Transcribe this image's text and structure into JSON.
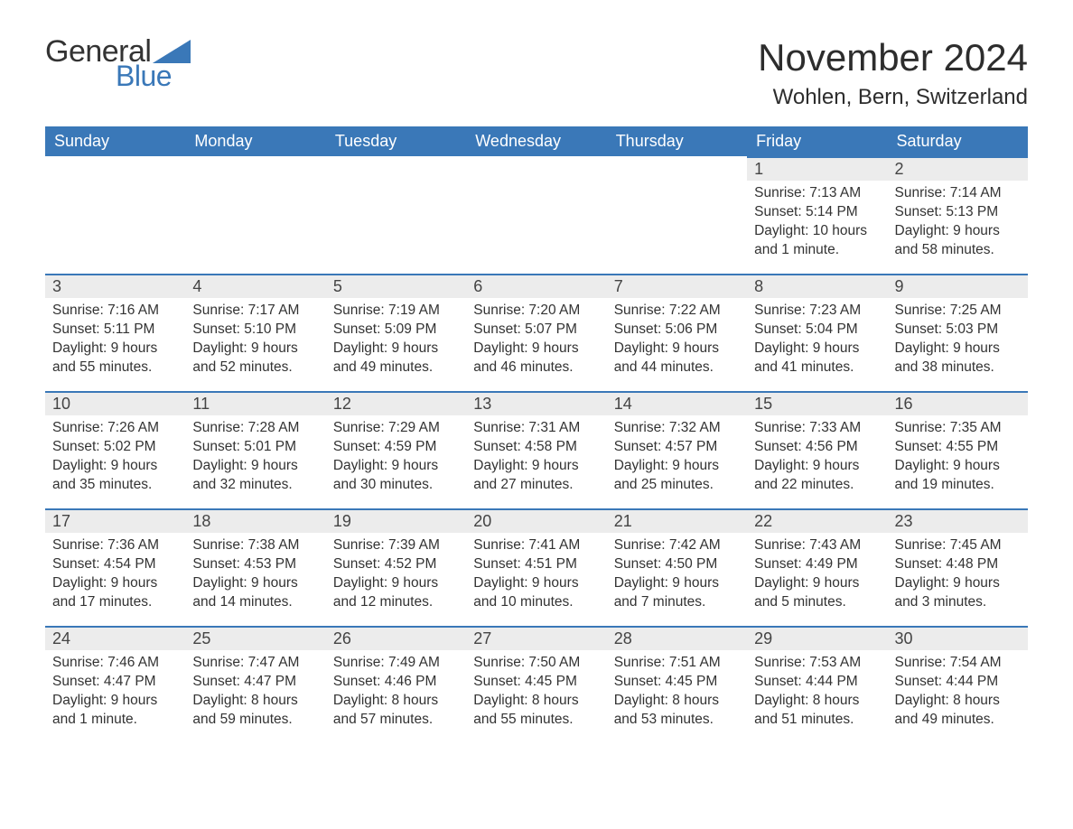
{
  "logo": {
    "general": "General",
    "blue": "Blue",
    "accent_color": "#3a78b8"
  },
  "header": {
    "title": "November 2024",
    "location": "Wohlen, Bern, Switzerland"
  },
  "styling": {
    "header_bg": "#3a78b8",
    "header_text": "#ffffff",
    "daynum_bg": "#ececec",
    "daynum_border": "#3a78b8",
    "body_text": "#333333",
    "page_bg": "#ffffff",
    "month_title_fontsize": 42,
    "location_fontsize": 24,
    "th_fontsize": 18,
    "detail_fontsize": 15.5
  },
  "daysOfWeek": [
    "Sunday",
    "Monday",
    "Tuesday",
    "Wednesday",
    "Thursday",
    "Friday",
    "Saturday"
  ],
  "weeks": [
    [
      null,
      null,
      null,
      null,
      null,
      {
        "n": "1",
        "sunrise": "Sunrise: 7:13 AM",
        "sunset": "Sunset: 5:14 PM",
        "day1": "Daylight: 10 hours",
        "day2": "and 1 minute."
      },
      {
        "n": "2",
        "sunrise": "Sunrise: 7:14 AM",
        "sunset": "Sunset: 5:13 PM",
        "day1": "Daylight: 9 hours",
        "day2": "and 58 minutes."
      }
    ],
    [
      {
        "n": "3",
        "sunrise": "Sunrise: 7:16 AM",
        "sunset": "Sunset: 5:11 PM",
        "day1": "Daylight: 9 hours",
        "day2": "and 55 minutes."
      },
      {
        "n": "4",
        "sunrise": "Sunrise: 7:17 AM",
        "sunset": "Sunset: 5:10 PM",
        "day1": "Daylight: 9 hours",
        "day2": "and 52 minutes."
      },
      {
        "n": "5",
        "sunrise": "Sunrise: 7:19 AM",
        "sunset": "Sunset: 5:09 PM",
        "day1": "Daylight: 9 hours",
        "day2": "and 49 minutes."
      },
      {
        "n": "6",
        "sunrise": "Sunrise: 7:20 AM",
        "sunset": "Sunset: 5:07 PM",
        "day1": "Daylight: 9 hours",
        "day2": "and 46 minutes."
      },
      {
        "n": "7",
        "sunrise": "Sunrise: 7:22 AM",
        "sunset": "Sunset: 5:06 PM",
        "day1": "Daylight: 9 hours",
        "day2": "and 44 minutes."
      },
      {
        "n": "8",
        "sunrise": "Sunrise: 7:23 AM",
        "sunset": "Sunset: 5:04 PM",
        "day1": "Daylight: 9 hours",
        "day2": "and 41 minutes."
      },
      {
        "n": "9",
        "sunrise": "Sunrise: 7:25 AM",
        "sunset": "Sunset: 5:03 PM",
        "day1": "Daylight: 9 hours",
        "day2": "and 38 minutes."
      }
    ],
    [
      {
        "n": "10",
        "sunrise": "Sunrise: 7:26 AM",
        "sunset": "Sunset: 5:02 PM",
        "day1": "Daylight: 9 hours",
        "day2": "and 35 minutes."
      },
      {
        "n": "11",
        "sunrise": "Sunrise: 7:28 AM",
        "sunset": "Sunset: 5:01 PM",
        "day1": "Daylight: 9 hours",
        "day2": "and 32 minutes."
      },
      {
        "n": "12",
        "sunrise": "Sunrise: 7:29 AM",
        "sunset": "Sunset: 4:59 PM",
        "day1": "Daylight: 9 hours",
        "day2": "and 30 minutes."
      },
      {
        "n": "13",
        "sunrise": "Sunrise: 7:31 AM",
        "sunset": "Sunset: 4:58 PM",
        "day1": "Daylight: 9 hours",
        "day2": "and 27 minutes."
      },
      {
        "n": "14",
        "sunrise": "Sunrise: 7:32 AM",
        "sunset": "Sunset: 4:57 PM",
        "day1": "Daylight: 9 hours",
        "day2": "and 25 minutes."
      },
      {
        "n": "15",
        "sunrise": "Sunrise: 7:33 AM",
        "sunset": "Sunset: 4:56 PM",
        "day1": "Daylight: 9 hours",
        "day2": "and 22 minutes."
      },
      {
        "n": "16",
        "sunrise": "Sunrise: 7:35 AM",
        "sunset": "Sunset: 4:55 PM",
        "day1": "Daylight: 9 hours",
        "day2": "and 19 minutes."
      }
    ],
    [
      {
        "n": "17",
        "sunrise": "Sunrise: 7:36 AM",
        "sunset": "Sunset: 4:54 PM",
        "day1": "Daylight: 9 hours",
        "day2": "and 17 minutes."
      },
      {
        "n": "18",
        "sunrise": "Sunrise: 7:38 AM",
        "sunset": "Sunset: 4:53 PM",
        "day1": "Daylight: 9 hours",
        "day2": "and 14 minutes."
      },
      {
        "n": "19",
        "sunrise": "Sunrise: 7:39 AM",
        "sunset": "Sunset: 4:52 PM",
        "day1": "Daylight: 9 hours",
        "day2": "and 12 minutes."
      },
      {
        "n": "20",
        "sunrise": "Sunrise: 7:41 AM",
        "sunset": "Sunset: 4:51 PM",
        "day1": "Daylight: 9 hours",
        "day2": "and 10 minutes."
      },
      {
        "n": "21",
        "sunrise": "Sunrise: 7:42 AM",
        "sunset": "Sunset: 4:50 PM",
        "day1": "Daylight: 9 hours",
        "day2": "and 7 minutes."
      },
      {
        "n": "22",
        "sunrise": "Sunrise: 7:43 AM",
        "sunset": "Sunset: 4:49 PM",
        "day1": "Daylight: 9 hours",
        "day2": "and 5 minutes."
      },
      {
        "n": "23",
        "sunrise": "Sunrise: 7:45 AM",
        "sunset": "Sunset: 4:48 PM",
        "day1": "Daylight: 9 hours",
        "day2": "and 3 minutes."
      }
    ],
    [
      {
        "n": "24",
        "sunrise": "Sunrise: 7:46 AM",
        "sunset": "Sunset: 4:47 PM",
        "day1": "Daylight: 9 hours",
        "day2": "and 1 minute."
      },
      {
        "n": "25",
        "sunrise": "Sunrise: 7:47 AM",
        "sunset": "Sunset: 4:47 PM",
        "day1": "Daylight: 8 hours",
        "day2": "and 59 minutes."
      },
      {
        "n": "26",
        "sunrise": "Sunrise: 7:49 AM",
        "sunset": "Sunset: 4:46 PM",
        "day1": "Daylight: 8 hours",
        "day2": "and 57 minutes."
      },
      {
        "n": "27",
        "sunrise": "Sunrise: 7:50 AM",
        "sunset": "Sunset: 4:45 PM",
        "day1": "Daylight: 8 hours",
        "day2": "and 55 minutes."
      },
      {
        "n": "28",
        "sunrise": "Sunrise: 7:51 AM",
        "sunset": "Sunset: 4:45 PM",
        "day1": "Daylight: 8 hours",
        "day2": "and 53 minutes."
      },
      {
        "n": "29",
        "sunrise": "Sunrise: 7:53 AM",
        "sunset": "Sunset: 4:44 PM",
        "day1": "Daylight: 8 hours",
        "day2": "and 51 minutes."
      },
      {
        "n": "30",
        "sunrise": "Sunrise: 7:54 AM",
        "sunset": "Sunset: 4:44 PM",
        "day1": "Daylight: 8 hours",
        "day2": "and 49 minutes."
      }
    ]
  ]
}
